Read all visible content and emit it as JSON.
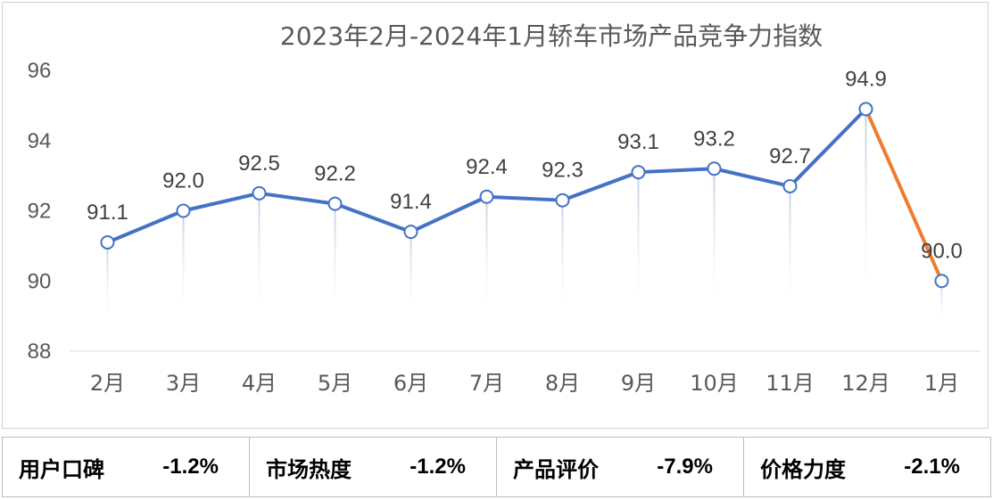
{
  "chart_data": {
    "type": "line",
    "title": "2023年2月-2024年1月轿车市场产品竞争力指数",
    "categories": [
      "2月",
      "3月",
      "4月",
      "5月",
      "6月",
      "7月",
      "8月",
      "9月",
      "10月",
      "11月",
      "12月",
      "1月"
    ],
    "values": [
      91.1,
      92.0,
      92.5,
      92.2,
      91.4,
      92.4,
      92.3,
      93.1,
      93.2,
      92.7,
      94.9,
      90.0
    ],
    "data_labels": [
      "91.1",
      "92.0",
      "92.5",
      "92.2",
      "91.4",
      "92.4",
      "92.3",
      "93.1",
      "93.2",
      "92.7",
      "94.9",
      "90.0"
    ],
    "ylim": [
      88,
      96
    ],
    "yticks": [
      "88",
      "90",
      "92",
      "94",
      "96"
    ],
    "grid": false,
    "line_color": "#4472C4",
    "highlight_segment_color": "#ED7D31",
    "highlight_segment": [
      10,
      11
    ]
  },
  "metrics": [
    {
      "label": "用户口碑",
      "value": "-1.2%"
    },
    {
      "label": "市场热度",
      "value": "-1.2%"
    },
    {
      "label": "产品评价",
      "value": "-7.9%"
    },
    {
      "label": "价格力度",
      "value": "-2.1%"
    }
  ]
}
